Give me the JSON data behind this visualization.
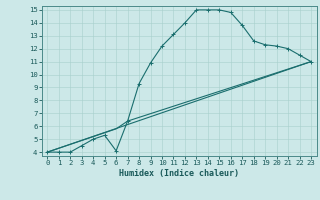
{
  "xlabel": "Humidex (Indice chaleur)",
  "bg_color": "#cce8e8",
  "line_color": "#1a6e6e",
  "xlim": [
    -0.5,
    23.5
  ],
  "ylim": [
    3.7,
    15.3
  ],
  "xticks": [
    0,
    1,
    2,
    3,
    4,
    5,
    6,
    7,
    8,
    9,
    10,
    11,
    12,
    13,
    14,
    15,
    16,
    17,
    18,
    19,
    20,
    21,
    22,
    23
  ],
  "yticks": [
    4,
    5,
    6,
    7,
    8,
    9,
    10,
    11,
    12,
    13,
    14,
    15
  ],
  "line1_x": [
    0,
    1,
    2,
    3,
    4,
    5,
    6,
    7,
    8,
    9,
    10,
    11,
    12,
    13,
    14,
    15,
    16,
    17,
    18,
    19,
    20,
    21,
    22,
    23
  ],
  "line1_y": [
    4,
    4,
    4,
    4.5,
    5,
    5.3,
    4.1,
    6.4,
    9.3,
    10.9,
    12.2,
    13.1,
    14.0,
    15.0,
    15.0,
    15.0,
    14.8,
    13.8,
    12.6,
    12.3,
    12.2,
    12.0,
    11.5,
    11.0
  ],
  "line2_x": [
    0,
    23
  ],
  "line2_y": [
    4,
    11.0
  ],
  "line3_x": [
    0,
    6,
    7,
    23
  ],
  "line3_y": [
    4,
    5.8,
    6.4,
    11.0
  ],
  "marker": "+"
}
